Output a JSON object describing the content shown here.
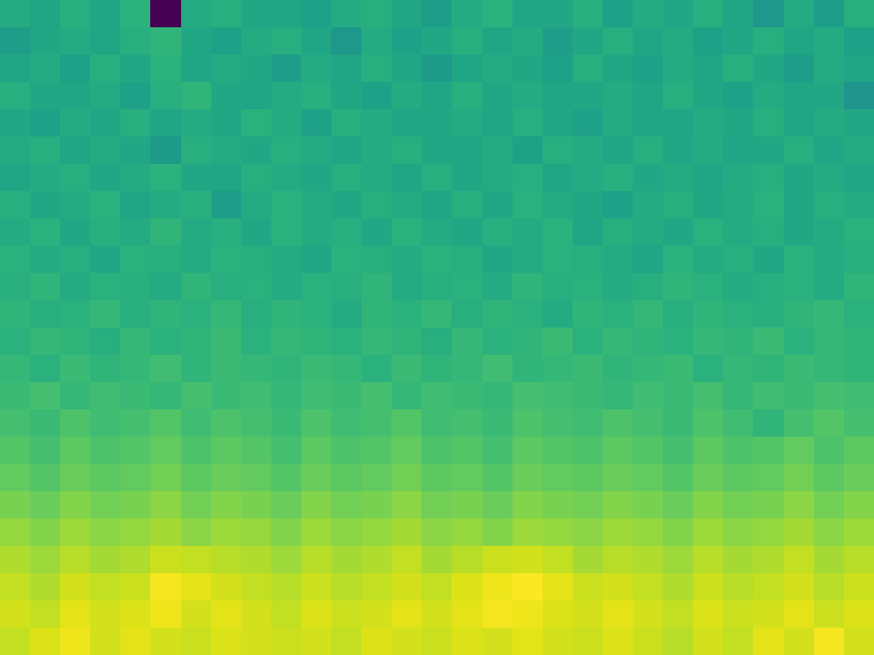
{
  "chart_data": {
    "type": "heatmap",
    "color": "viridis",
    "tick_labels": false,
    "cells": [
      [
        0.46,
        0.44,
        0.47,
        0.45,
        0.48,
        0.0,
        0.46,
        0.47,
        0.45,
        0.44,
        0.43,
        0.46,
        0.47,
        0.45,
        0.42,
        0.46,
        0.48,
        0.44,
        0.45,
        0.47,
        0.43,
        0.46,
        0.45,
        0.47,
        0.44,
        0.4,
        0.46,
        0.42,
        0.47
      ],
      [
        0.42,
        0.45,
        0.46,
        0.44,
        0.47,
        0.49,
        0.45,
        0.43,
        0.46,
        0.47,
        0.44,
        0.4,
        0.46,
        0.43,
        0.45,
        0.47,
        0.44,
        0.46,
        0.42,
        0.45,
        0.47,
        0.44,
        0.46,
        0.43,
        0.45,
        0.47,
        0.44,
        0.46,
        0.43
      ],
      [
        0.44,
        0.46,
        0.43,
        0.47,
        0.45,
        0.48,
        0.44,
        0.46,
        0.45,
        0.42,
        0.46,
        0.44,
        0.47,
        0.45,
        0.41,
        0.44,
        0.46,
        0.45,
        0.43,
        0.47,
        0.45,
        0.43,
        0.46,
        0.44,
        0.47,
        0.45,
        0.42,
        0.46,
        0.44
      ],
      [
        0.47,
        0.45,
        0.44,
        0.46,
        0.43,
        0.47,
        0.49,
        0.45,
        0.44,
        0.46,
        0.47,
        0.45,
        0.43,
        0.46,
        0.44,
        0.47,
        0.45,
        0.46,
        0.44,
        0.45,
        0.46,
        0.44,
        0.47,
        0.45,
        0.43,
        0.46,
        0.44,
        0.45,
        0.39
      ],
      [
        0.45,
        0.43,
        0.46,
        0.45,
        0.47,
        0.44,
        0.46,
        0.45,
        0.48,
        0.46,
        0.43,
        0.47,
        0.46,
        0.44,
        0.45,
        0.46,
        0.44,
        0.47,
        0.45,
        0.43,
        0.46,
        0.45,
        0.44,
        0.46,
        0.45,
        0.47,
        0.44,
        0.46,
        0.45
      ],
      [
        0.46,
        0.47,
        0.44,
        0.46,
        0.45,
        0.41,
        0.47,
        0.46,
        0.45,
        0.47,
        0.46,
        0.44,
        0.46,
        0.47,
        0.45,
        0.44,
        0.46,
        0.43,
        0.47,
        0.46,
        0.44,
        0.47,
        0.45,
        0.46,
        0.44,
        0.45,
        0.47,
        0.44,
        0.46
      ],
      [
        0.44,
        0.46,
        0.47,
        0.45,
        0.46,
        0.48,
        0.45,
        0.44,
        0.47,
        0.46,
        0.45,
        0.47,
        0.46,
        0.44,
        0.47,
        0.45,
        0.46,
        0.47,
        0.44,
        0.46,
        0.47,
        0.45,
        0.46,
        0.44,
        0.46,
        0.47,
        0.45,
        0.46,
        0.44
      ],
      [
        0.47,
        0.45,
        0.46,
        0.48,
        0.44,
        0.46,
        0.47,
        0.42,
        0.46,
        0.48,
        0.46,
        0.45,
        0.47,
        0.46,
        0.44,
        0.47,
        0.45,
        0.48,
        0.46,
        0.45,
        0.43,
        0.46,
        0.47,
        0.45,
        0.46,
        0.48,
        0.45,
        0.47,
        0.46
      ],
      [
        0.46,
        0.48,
        0.45,
        0.47,
        0.46,
        0.49,
        0.46,
        0.47,
        0.45,
        0.48,
        0.46,
        0.47,
        0.45,
        0.48,
        0.46,
        0.45,
        0.47,
        0.46,
        0.48,
        0.44,
        0.47,
        0.46,
        0.45,
        0.48,
        0.46,
        0.47,
        0.45,
        0.46,
        0.48
      ],
      [
        0.48,
        0.46,
        0.47,
        0.45,
        0.48,
        0.47,
        0.46,
        0.48,
        0.47,
        0.46,
        0.45,
        0.48,
        0.47,
        0.46,
        0.48,
        0.47,
        0.45,
        0.46,
        0.48,
        0.47,
        0.46,
        0.44,
        0.48,
        0.46,
        0.47,
        0.45,
        0.48,
        0.46,
        0.47
      ],
      [
        0.47,
        0.49,
        0.46,
        0.48,
        0.47,
        0.46,
        0.49,
        0.47,
        0.48,
        0.46,
        0.48,
        0.47,
        0.49,
        0.46,
        0.47,
        0.48,
        0.46,
        0.49,
        0.47,
        0.48,
        0.46,
        0.47,
        0.49,
        0.48,
        0.46,
        0.47,
        0.48,
        0.46,
        0.49
      ],
      [
        0.49,
        0.47,
        0.48,
        0.5,
        0.47,
        0.49,
        0.48,
        0.5,
        0.47,
        0.49,
        0.48,
        0.46,
        0.49,
        0.48,
        0.5,
        0.47,
        0.49,
        0.48,
        0.46,
        0.49,
        0.48,
        0.5,
        0.47,
        0.49,
        0.48,
        0.47,
        0.49,
        0.5,
        0.48
      ],
      [
        0.48,
        0.5,
        0.49,
        0.47,
        0.5,
        0.48,
        0.49,
        0.51,
        0.48,
        0.5,
        0.49,
        0.48,
        0.5,
        0.49,
        0.47,
        0.5,
        0.48,
        0.49,
        0.51,
        0.48,
        0.5,
        0.49,
        0.48,
        0.5,
        0.49,
        0.51,
        0.48,
        0.5,
        0.49
      ],
      [
        0.5,
        0.48,
        0.51,
        0.49,
        0.5,
        0.52,
        0.49,
        0.51,
        0.5,
        0.49,
        0.51,
        0.5,
        0.48,
        0.51,
        0.49,
        0.5,
        0.52,
        0.49,
        0.5,
        0.51,
        0.49,
        0.5,
        0.51,
        0.48,
        0.5,
        0.49,
        0.51,
        0.5,
        0.49
      ],
      [
        0.51,
        0.53,
        0.5,
        0.52,
        0.51,
        0.5,
        0.53,
        0.51,
        0.52,
        0.5,
        0.52,
        0.51,
        0.53,
        0.5,
        0.52,
        0.51,
        0.5,
        0.53,
        0.52,
        0.51,
        0.5,
        0.52,
        0.51,
        0.53,
        0.5,
        0.52,
        0.51,
        0.53,
        0.52
      ],
      [
        0.53,
        0.51,
        0.54,
        0.52,
        0.53,
        0.55,
        0.52,
        0.54,
        0.53,
        0.51,
        0.54,
        0.52,
        0.53,
        0.55,
        0.52,
        0.53,
        0.51,
        0.54,
        0.53,
        0.52,
        0.54,
        0.53,
        0.51,
        0.54,
        0.52,
        0.49,
        0.53,
        0.55,
        0.53
      ],
      [
        0.55,
        0.53,
        0.56,
        0.54,
        0.55,
        0.57,
        0.54,
        0.56,
        0.55,
        0.53,
        0.56,
        0.54,
        0.55,
        0.57,
        0.54,
        0.55,
        0.53,
        0.56,
        0.55,
        0.54,
        0.56,
        0.55,
        0.53,
        0.56,
        0.54,
        0.55,
        0.57,
        0.54,
        0.56
      ],
      [
        0.57,
        0.55,
        0.58,
        0.56,
        0.57,
        0.59,
        0.56,
        0.58,
        0.57,
        0.55,
        0.58,
        0.56,
        0.57,
        0.59,
        0.56,
        0.57,
        0.55,
        0.58,
        0.57,
        0.56,
        0.58,
        0.57,
        0.55,
        0.58,
        0.56,
        0.57,
        0.59,
        0.56,
        0.58
      ],
      [
        0.6,
        0.58,
        0.61,
        0.59,
        0.6,
        0.62,
        0.59,
        0.61,
        0.6,
        0.58,
        0.61,
        0.59,
        0.6,
        0.62,
        0.59,
        0.6,
        0.58,
        0.61,
        0.6,
        0.59,
        0.61,
        0.6,
        0.58,
        0.61,
        0.59,
        0.6,
        0.62,
        0.59,
        0.61
      ],
      [
        0.63,
        0.61,
        0.64,
        0.62,
        0.63,
        0.65,
        0.62,
        0.64,
        0.63,
        0.61,
        0.64,
        0.62,
        0.63,
        0.65,
        0.62,
        0.63,
        0.61,
        0.64,
        0.63,
        0.62,
        0.64,
        0.63,
        0.61,
        0.64,
        0.62,
        0.63,
        0.65,
        0.62,
        0.64
      ],
      [
        0.66,
        0.64,
        0.67,
        0.65,
        0.66,
        0.69,
        0.68,
        0.67,
        0.66,
        0.64,
        0.67,
        0.65,
        0.66,
        0.68,
        0.65,
        0.67,
        0.69,
        0.7,
        0.68,
        0.65,
        0.67,
        0.66,
        0.64,
        0.67,
        0.65,
        0.66,
        0.68,
        0.65,
        0.67
      ],
      [
        0.68,
        0.66,
        0.7,
        0.68,
        0.69,
        0.74,
        0.72,
        0.7,
        0.68,
        0.67,
        0.69,
        0.67,
        0.68,
        0.7,
        0.68,
        0.71,
        0.73,
        0.75,
        0.72,
        0.69,
        0.7,
        0.68,
        0.66,
        0.69,
        0.67,
        0.68,
        0.7,
        0.67,
        0.69
      ],
      [
        0.7,
        0.68,
        0.72,
        0.7,
        0.71,
        0.73,
        0.7,
        0.72,
        0.7,
        0.68,
        0.71,
        0.69,
        0.7,
        0.72,
        0.7,
        0.72,
        0.74,
        0.73,
        0.71,
        0.7,
        0.72,
        0.7,
        0.68,
        0.71,
        0.69,
        0.7,
        0.72,
        0.69,
        0.71
      ],
      [
        0.68,
        0.71,
        0.73,
        0.7,
        0.72,
        0.7,
        0.69,
        0.71,
        0.7,
        0.69,
        0.7,
        0.68,
        0.71,
        0.7,
        0.69,
        0.71,
        0.7,
        0.72,
        0.7,
        0.69,
        0.71,
        0.69,
        0.67,
        0.7,
        0.68,
        0.72,
        0.7,
        0.74,
        0.7
      ]
    ]
  }
}
